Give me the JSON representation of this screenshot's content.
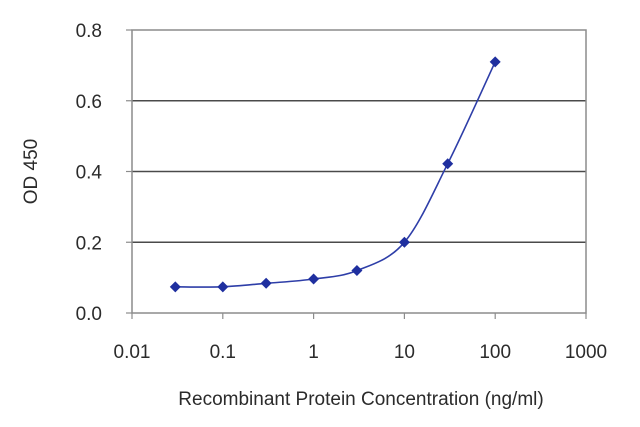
{
  "chart_data": {
    "type": "line",
    "xscale": "log",
    "title": "",
    "xlabel": "Recombinant Protein Concentration (ng/ml)",
    "ylabel": "OD 450",
    "xlim": [
      0.01,
      1000
    ],
    "ylim": [
      0,
      0.8
    ],
    "x_ticks": [
      0.01,
      0.1,
      1,
      10,
      100,
      1000
    ],
    "x_tick_labels": [
      "0.01",
      "0.1",
      "1",
      "10",
      "100",
      "1000"
    ],
    "y_ticks": [
      0,
      0.2,
      0.4,
      0.6,
      0.8
    ],
    "y_tick_labels": [
      "0.0",
      "0.2",
      "0.4",
      "0.6",
      "0.8"
    ],
    "grid": "horizontal",
    "legend": "none",
    "series": [
      {
        "x": [
          0.03,
          0.1,
          0.3,
          1,
          3,
          10,
          30,
          100
        ],
        "y": [
          0.074,
          0.074,
          0.084,
          0.096,
          0.12,
          0.2,
          0.422,
          0.71
        ],
        "color": "#1f2f9f"
      }
    ]
  }
}
